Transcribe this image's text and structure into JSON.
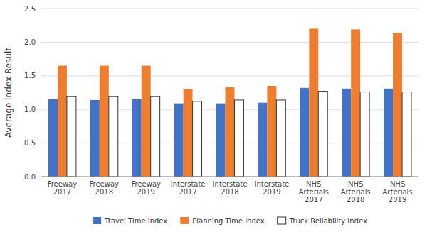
{
  "chart_data": {
    "type": "bar",
    "y_label": "Average Index Result",
    "categories": [
      "Freeway\n2017",
      "Freeway\n2018",
      "Freeway\n2019",
      "Interstate\n2017",
      "Interstate\n2018",
      "Interstate\n2019",
      "NHS\nArterials\n2017",
      "NHS\nArterials\n2018",
      "NHS\nArterials\n2019"
    ],
    "series": [
      {
        "name": "Travel Time Index",
        "color": "#4472C4",
        "values": [
          1.15,
          1.14,
          1.16,
          1.09,
          1.09,
          1.1,
          1.32,
          1.31,
          1.31
        ]
      },
      {
        "name": "Planning Time Index",
        "color": "#ED7D31",
        "values": [
          1.65,
          1.65,
          1.65,
          1.3,
          1.33,
          1.35,
          2.2,
          2.19,
          2.14
        ]
      },
      {
        "name": "Truck Reliability Index",
        "color": "#FFFFFF",
        "values": [
          1.19,
          1.19,
          1.19,
          1.12,
          1.14,
          1.14,
          1.27,
          1.26,
          1.26
        ]
      }
    ],
    "ylim": [
      0,
      2.5
    ],
    "yticks": [
      {
        "value": 0,
        "label": "0.0"
      },
      0.5,
      {
        "value": 1,
        "label": "1.0"
      },
      1.5,
      {
        "value": 2,
        "label": "2.0"
      },
      2.5
    ],
    "grid": true,
    "legend": "bottom"
  }
}
